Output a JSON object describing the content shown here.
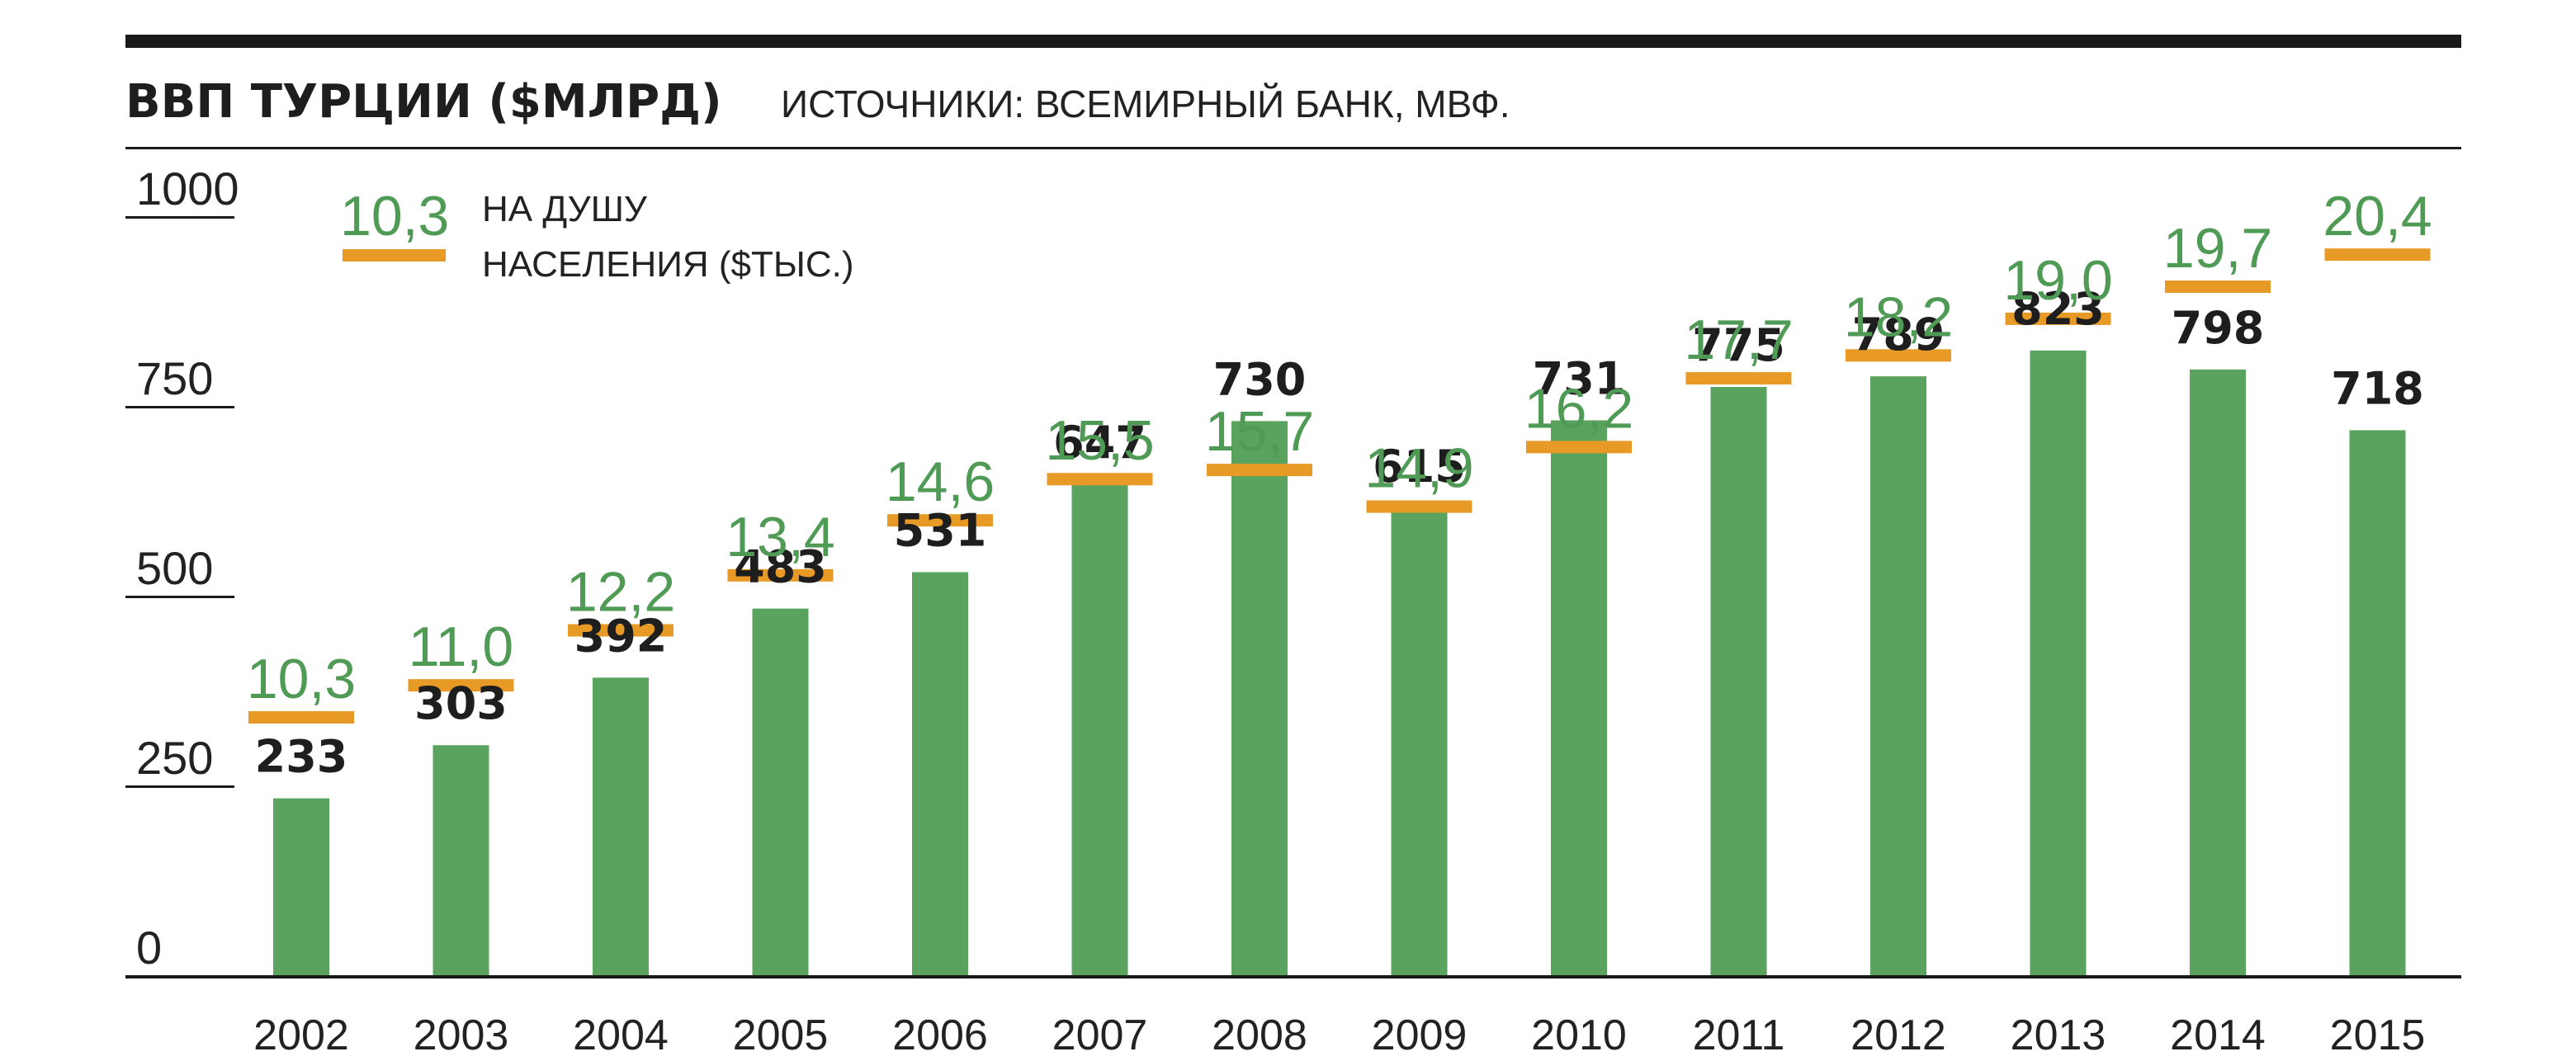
{
  "header": {
    "title": "ВВП ТУРЦИИ ($МЛРД)",
    "source": "ИСТОЧНИКИ: ВСЕМИРНЫЙ БАНК, МВФ."
  },
  "legend": {
    "sample_value": "10,3",
    "label_line1": "НА ДУШУ",
    "label_line2": "НАСЕЛЕНИЯ ($ТЫС.)"
  },
  "colors": {
    "bar": "#5aa35e",
    "marker": "#e89a26",
    "per_capita_text": "#4f9a55",
    "rule": "#1a1a1a"
  },
  "chart_data": {
    "type": "bar",
    "title": "ВВП ТУРЦИИ ($МЛРД)",
    "subtitle": "ИСТОЧНИКИ: ВСЕМИРНЫЙ БАНК, МВФ.",
    "categories": [
      "2002",
      "2003",
      "2004",
      "2005",
      "2006",
      "2007",
      "2008",
      "2009",
      "2010",
      "2011",
      "2012",
      "2013",
      "2014",
      "2015"
    ],
    "ylim": [
      0,
      1000
    ],
    "yticks": [
      "0",
      "250",
      "500",
      "750",
      "1000"
    ],
    "grid": false,
    "series": [
      {
        "name": "",
        "values": [
          233,
          303,
          392,
          483,
          531,
          647,
          730,
          615,
          731,
          775,
          789,
          823,
          798,
          718
        ],
        "labels": [
          "233",
          "303",
          "392",
          "483",
          "531",
          "647",
          "730",
          "615",
          "731",
          "775",
          "789",
          "823",
          "798",
          "718"
        ]
      },
      {
        "name": "НА ДУШУ НАСЕЛЕНИЯ ($ТЫС.)",
        "values": [
          10.3,
          11.0,
          12.2,
          13.4,
          14.6,
          15.5,
          15.7,
          14.9,
          16.2,
          17.7,
          18.2,
          19.0,
          19.7,
          20.4
        ],
        "labels": [
          "10,3",
          "11,0",
          "12,2",
          "13,4",
          "14,6",
          "15,5",
          "15,7",
          "14,9",
          "16,2",
          "17,7",
          "18,2",
          "19,0",
          "19,7",
          "20,4"
        ]
      }
    ]
  }
}
